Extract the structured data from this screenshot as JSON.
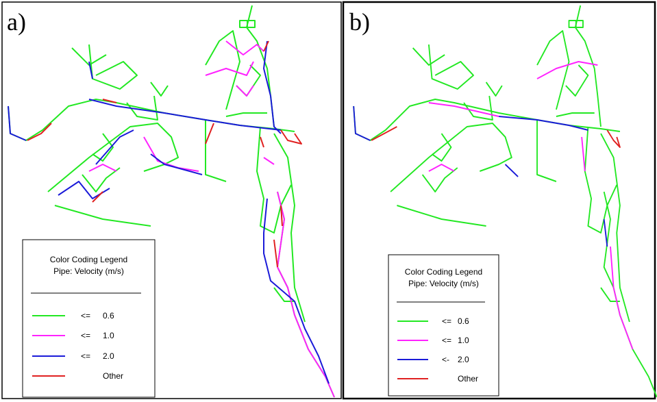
{
  "panels": [
    {
      "label": "a)",
      "legend": {
        "title": [
          "Color Coding Legend",
          "Pipe: Velocity (m/s)"
        ],
        "items": [
          {
            "symbol": "<=",
            "value": "0.6",
            "color": "#22e822"
          },
          {
            "symbol": "<=",
            "value": "1.0",
            "color": "#ff22ff"
          },
          {
            "symbol": "<=",
            "value": "2.0",
            "color": "#1a1ad8"
          },
          {
            "value": "Other",
            "color": "#e02020"
          }
        ]
      }
    },
    {
      "label": "b)",
      "legend": {
        "title": [
          "Color Coding Legend",
          "Pipe: Velocity (m/s)"
        ],
        "items": [
          {
            "symbol": "<=",
            "value": "0.6",
            "color": "#22e822"
          },
          {
            "symbol": "<=",
            "value": "1.0",
            "color": "#ff22ff"
          },
          {
            "symbol": "<-",
            "value": "2.0",
            "color": "#1a1ad8"
          },
          {
            "value": "Other",
            "color": "#e02020"
          }
        ]
      }
    }
  ]
}
